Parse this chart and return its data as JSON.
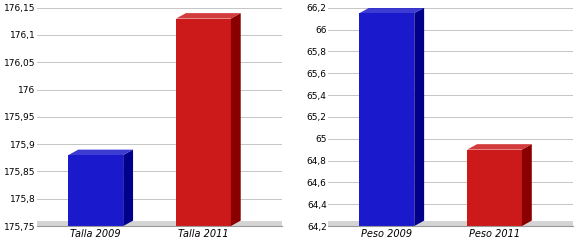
{
  "chart1": {
    "categories": [
      "Talla 2009",
      "Talla 2011"
    ],
    "values": [
      175.88,
      176.13
    ],
    "colors": [
      "#1a1acc",
      "#cc1a1a"
    ],
    "dark_colors": [
      "#00008a",
      "#8a0000"
    ],
    "top_colors": [
      "#3333dd",
      "#dd3333"
    ],
    "ylim": [
      175.75,
      176.15
    ],
    "yticks": [
      175.75,
      175.8,
      175.85,
      175.9,
      175.95,
      176.0,
      176.05,
      176.1,
      176.15
    ],
    "ytick_labels": [
      "175,75",
      "175,8",
      "175,85",
      "175,9",
      "175,95",
      "176",
      "176,05",
      "176,1",
      "176,15"
    ]
  },
  "chart2": {
    "categories": [
      "Peso 2009",
      "Peso 2011"
    ],
    "values": [
      66.15,
      64.9
    ],
    "colors": [
      "#1a1acc",
      "#cc1a1a"
    ],
    "dark_colors": [
      "#00008a",
      "#8a0000"
    ],
    "top_colors": [
      "#3333dd",
      "#dd3333"
    ],
    "ylim": [
      64.2,
      66.2
    ],
    "yticks": [
      64.2,
      64.4,
      64.6,
      64.8,
      65.0,
      65.2,
      65.4,
      65.6,
      65.8,
      66.0,
      66.2
    ],
    "ytick_labels": [
      "64,2",
      "64,4",
      "64,6",
      "64,8",
      "65",
      "65,2",
      "65,4",
      "65,6",
      "65,8",
      "66",
      "66,2"
    ]
  },
  "fig_bg": "#ffffff",
  "plot_bg": "#ffffff",
  "bar_width": 0.28,
  "x_positions": [
    0.3,
    0.85
  ],
  "xlim": [
    0.0,
    1.25
  ],
  "grid_color": "#bbbbbb",
  "tick_fontsize": 6.5,
  "label_fontsize": 7.0,
  "shadow_bottom_color": "#aaaaaa"
}
